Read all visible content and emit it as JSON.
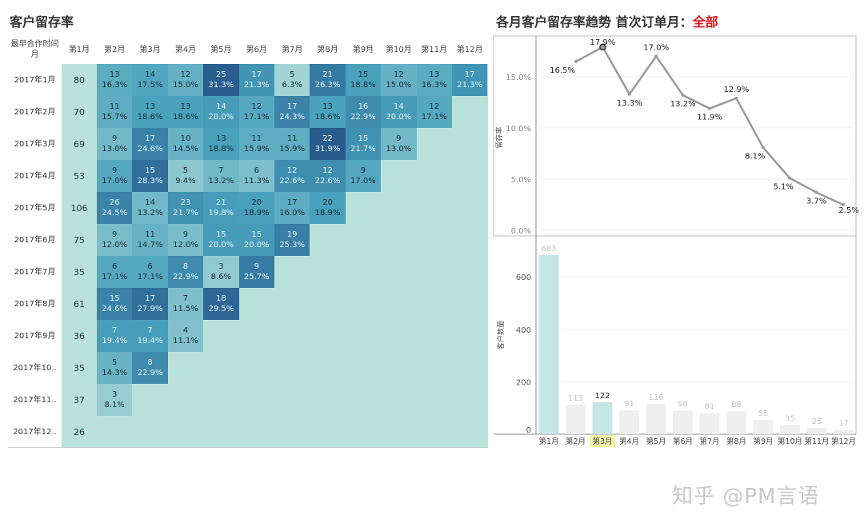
{
  "heatmap": {
    "title": "客户留存率",
    "corner_label": "最早合作时间 月",
    "columns": [
      "第1月",
      "第2月",
      "第3月",
      "第4月",
      "第5月",
      "第6月",
      "第7月",
      "第8月",
      "第9月",
      "第10月",
      "第11月",
      "第12月"
    ],
    "rows": [
      {
        "label": "2017年1月",
        "size": 80,
        "cells": [
          [
            13,
            "16.3%"
          ],
          [
            14,
            "17.5%"
          ],
          [
            12,
            "15.0%"
          ],
          [
            25,
            "31.3%"
          ],
          [
            17,
            "21.3%"
          ],
          [
            5,
            "6.3%"
          ],
          [
            21,
            "26.3%"
          ],
          [
            15,
            "18.8%"
          ],
          [
            12,
            "15.0%"
          ],
          [
            13,
            "16.3%"
          ],
          [
            17,
            "21.3%"
          ]
        ]
      },
      {
        "label": "2017年2月",
        "size": 70,
        "cells": [
          [
            11,
            "15.7%"
          ],
          [
            13,
            "18.6%"
          ],
          [
            13,
            "18.6%"
          ],
          [
            14,
            "20.0%"
          ],
          [
            12,
            "17.1%"
          ],
          [
            17,
            "24.3%"
          ],
          [
            13,
            "18.6%"
          ],
          [
            16,
            "22.9%"
          ],
          [
            14,
            "20.0%"
          ],
          [
            12,
            "17.1%"
          ]
        ]
      },
      {
        "label": "2017年3月",
        "size": 69,
        "cells": [
          [
            9,
            "13.0%"
          ],
          [
            17,
            "24.6%"
          ],
          [
            10,
            "14.5%"
          ],
          [
            13,
            "18.8%"
          ],
          [
            11,
            "15.9%"
          ],
          [
            11,
            "15.9%"
          ],
          [
            22,
            "31.9%"
          ],
          [
            15,
            "21.7%"
          ],
          [
            9,
            "13.0%"
          ]
        ]
      },
      {
        "label": "2017年4月",
        "size": 53,
        "cells": [
          [
            9,
            "17.0%"
          ],
          [
            15,
            "28.3%"
          ],
          [
            5,
            "9.4%"
          ],
          [
            7,
            "13.2%"
          ],
          [
            6,
            "11.3%"
          ],
          [
            12,
            "22.6%"
          ],
          [
            12,
            "22.6%"
          ],
          [
            9,
            "17.0%"
          ]
        ]
      },
      {
        "label": "2017年5月",
        "size": 106,
        "cells": [
          [
            26,
            "24.5%"
          ],
          [
            14,
            "13.2%"
          ],
          [
            23,
            "21.7%"
          ],
          [
            21,
            "19.8%"
          ],
          [
            20,
            "18.9%"
          ],
          [
            17,
            "16.0%"
          ],
          [
            20,
            "18.9%"
          ]
        ]
      },
      {
        "label": "2017年6月",
        "size": 75,
        "cells": [
          [
            9,
            "12.0%"
          ],
          [
            11,
            "14.7%"
          ],
          [
            9,
            "12.0%"
          ],
          [
            15,
            "20.0%"
          ],
          [
            15,
            "20.0%"
          ],
          [
            19,
            "25.3%"
          ]
        ]
      },
      {
        "label": "2017年7月",
        "size": 35,
        "cells": [
          [
            6,
            "17.1%"
          ],
          [
            6,
            "17.1%"
          ],
          [
            8,
            "22.9%"
          ],
          [
            3,
            "8.6%"
          ],
          [
            9,
            "25.7%"
          ]
        ]
      },
      {
        "label": "2017年8月",
        "size": 61,
        "cells": [
          [
            15,
            "24.6%"
          ],
          [
            17,
            "27.9%"
          ],
          [
            7,
            "11.5%"
          ],
          [
            18,
            "29.5%"
          ]
        ]
      },
      {
        "label": "2017年9月",
        "size": 36,
        "cells": [
          [
            7,
            "19.4%"
          ],
          [
            7,
            "19.4%"
          ],
          [
            4,
            "11.1%"
          ]
        ]
      },
      {
        "label": "2017年10..",
        "size": 35,
        "cells": [
          [
            5,
            "14.3%"
          ],
          [
            8,
            "22.9%"
          ]
        ]
      },
      {
        "label": "2017年11..",
        "size": 37,
        "cells": [
          [
            3,
            "8.1%"
          ]
        ]
      },
      {
        "label": "2017年12..",
        "size": 26,
        "cells": []
      }
    ]
  },
  "trend": {
    "title": "各月客户留存率趋势 首次订单月：",
    "filter_value": "全部"
  },
  "chart_data": [
    {
      "type": "line",
      "ylabel": "留存率",
      "yticks": [
        "0.0%",
        "5.0%",
        "10.0%",
        "15.0%"
      ],
      "ylim": [
        0,
        18.5
      ],
      "x": [
        "第2月",
        "第3月",
        "第4月",
        "第5月",
        "第6月",
        "第7月",
        "第8月",
        "第9月",
        "第10月",
        "第11月",
        "第12月"
      ],
      "values": [
        16.5,
        17.9,
        13.3,
        17.0,
        13.2,
        11.9,
        12.9,
        8.1,
        5.1,
        3.7,
        2.5
      ],
      "labels": [
        "16.5%",
        "17.9%",
        "13.3%",
        "17.0%",
        "13.2%",
        "11.9%",
        "12.9%",
        "8.1%",
        "5.1%",
        "3.7%",
        "2.5%"
      ],
      "highlight_index": 1,
      "color": "#999999"
    },
    {
      "type": "bar",
      "ylabel": "客户数量",
      "yticks": [
        "0",
        "200",
        "400",
        "600"
      ],
      "ylim": [
        0,
        750
      ],
      "categories": [
        "第1月",
        "第2月",
        "第3月",
        "第4月",
        "第5月",
        "第6月",
        "第7月",
        "第8月",
        "第9月",
        "第10月",
        "第11月",
        "第12月"
      ],
      "values": [
        683,
        113,
        122,
        91,
        116,
        90,
        81,
        88,
        55,
        35,
        25,
        17
      ],
      "highlighted": [
        0,
        2
      ],
      "selected_category": 2,
      "highlight_color": "#c5e5e6",
      "bar_color": "#efefef"
    }
  ],
  "watermark": "知乎 @PM言语"
}
